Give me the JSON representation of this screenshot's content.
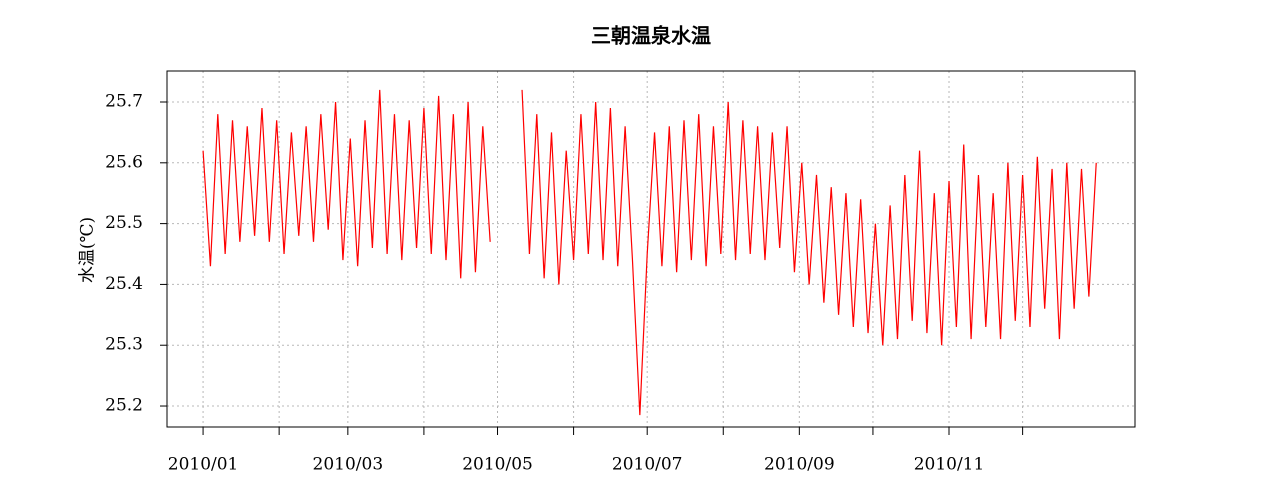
{
  "chart_data": {
    "type": "line",
    "title": "三朝温泉水温",
    "y_label": "水温(℃)",
    "x": [
      0,
      3,
      6,
      9,
      12,
      15,
      18,
      21,
      24,
      27,
      30,
      33,
      36,
      39,
      42,
      45,
      48,
      51,
      54,
      57,
      60,
      63,
      66,
      69,
      72,
      75,
      78,
      81,
      84,
      87,
      90,
      93,
      96,
      99,
      102,
      105,
      108,
      111,
      114,
      117,
      124,
      130,
      133,
      136,
      139,
      142,
      145,
      148,
      151,
      154,
      157,
      160,
      163,
      166,
      169,
      172,
      175,
      178,
      181,
      184,
      187,
      190,
      193,
      196,
      199,
      202,
      205,
      208,
      211,
      214,
      217,
      220,
      223,
      226,
      229,
      232,
      235,
      238,
      241,
      244,
      247,
      250,
      253,
      256,
      259,
      262,
      265,
      268,
      271,
      274,
      277,
      280,
      283,
      286,
      289,
      292,
      295,
      298,
      301,
      304,
      307,
      310,
      313,
      316,
      319,
      322,
      325,
      328,
      331,
      334,
      337,
      340,
      343,
      346,
      349,
      352,
      355,
      358,
      361,
      364
    ],
    "series": [
      {
        "name": "水温",
        "color": "#ff0000",
        "values": [
          25.62,
          25.43,
          25.68,
          25.45,
          25.67,
          25.47,
          25.66,
          25.48,
          25.69,
          25.47,
          25.67,
          25.45,
          25.65,
          25.48,
          25.66,
          25.47,
          25.68,
          25.49,
          25.7,
          25.44,
          25.64,
          25.43,
          25.67,
          25.46,
          25.72,
          25.45,
          25.68,
          25.44,
          25.67,
          25.46,
          25.69,
          25.45,
          25.71,
          25.44,
          25.68,
          25.41,
          25.7,
          25.42,
          25.66,
          25.47,
          null,
          25.72,
          25.45,
          25.68,
          25.41,
          25.65,
          25.4,
          25.62,
          25.44,
          25.68,
          25.45,
          25.7,
          25.44,
          25.69,
          25.43,
          25.66,
          25.44,
          25.185,
          25.45,
          25.65,
          25.43,
          25.66,
          25.42,
          25.67,
          25.44,
          25.68,
          25.43,
          25.66,
          25.45,
          25.7,
          25.44,
          25.67,
          25.45,
          25.66,
          25.44,
          25.65,
          25.46,
          25.66,
          25.42,
          25.6,
          25.4,
          25.58,
          25.37,
          25.56,
          25.35,
          25.55,
          25.33,
          25.54,
          25.32,
          25.5,
          25.3,
          25.53,
          25.31,
          25.58,
          25.34,
          25.62,
          25.32,
          25.55,
          25.3,
          25.57,
          25.33,
          25.63,
          25.31,
          25.58,
          25.33,
          25.55,
          25.31,
          25.6,
          25.34,
          25.58,
          25.33,
          25.61,
          25.36,
          25.59,
          25.31,
          25.6,
          25.36,
          25.59,
          25.38,
          25.6
        ]
      }
    ],
    "xlim": [
      -14.7,
      379.8
    ],
    "xticks": [
      {
        "value": 0,
        "label": "2010/01"
      },
      {
        "value": 31,
        "label": null
      },
      {
        "value": 59,
        "label": "2010/03"
      },
      {
        "value": 90,
        "label": null
      },
      {
        "value": 120,
        "label": "2010/05"
      },
      {
        "value": 151,
        "label": null
      },
      {
        "value": 181,
        "label": "2010/07"
      },
      {
        "value": 212,
        "label": null
      },
      {
        "value": 243,
        "label": "2010/09"
      },
      {
        "value": 273,
        "label": null
      },
      {
        "value": 304,
        "label": "2010/11"
      },
      {
        "value": 334,
        "label": null
      }
    ],
    "ylim": [
      25.1655,
      25.751
    ],
    "yticks": [
      25.2,
      25.3,
      25.4,
      25.5,
      25.6,
      25.7
    ],
    "grid": true
  }
}
